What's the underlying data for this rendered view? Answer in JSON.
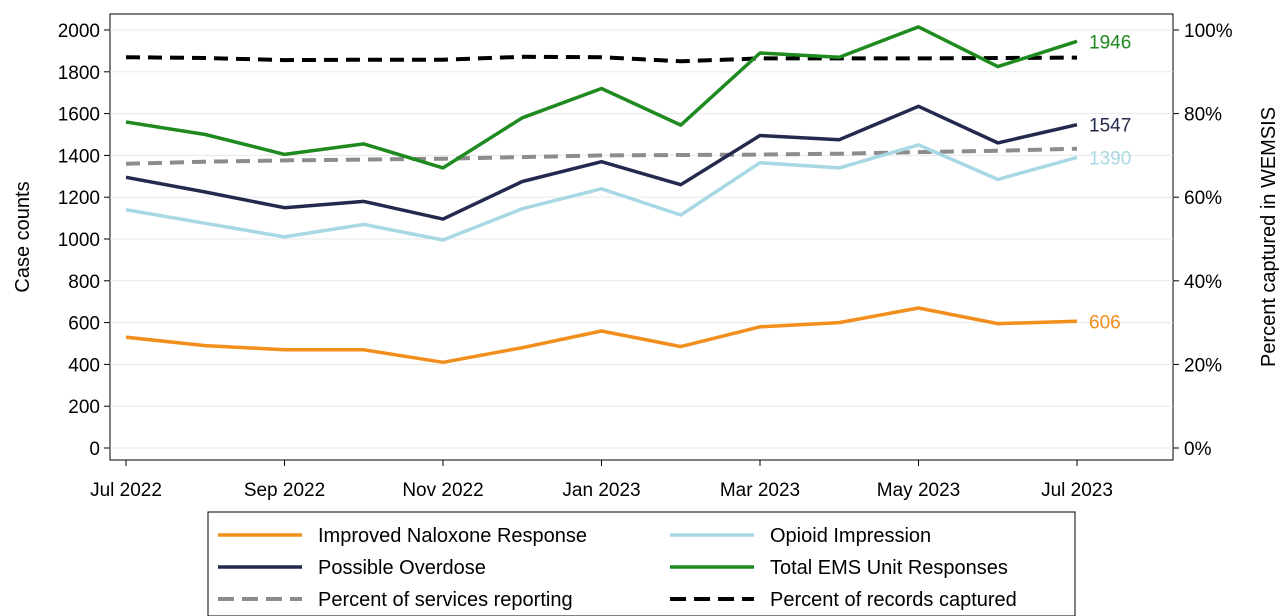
{
  "chart_data": {
    "type": "line",
    "xlabel": "",
    "ylabel": "Case counts",
    "y2label": "Percent captured in WEMSIS",
    "ylim": [
      0,
      2000
    ],
    "y2lim": [
      0,
      100
    ],
    "grid": true,
    "legend_position": "bottom",
    "x": [
      "Jul 2022",
      "Aug 2022",
      "Sep 2022",
      "Oct 2022",
      "Nov 2022",
      "Dec 2022",
      "Jan 2023",
      "Feb 2023",
      "Mar 2023",
      "Apr 2023",
      "May 2023",
      "Jun 2023",
      "Jul 2023"
    ],
    "x_tick_labels": [
      "Jul 2022",
      "Sep 2022",
      "Nov 2022",
      "Jan 2023",
      "Mar 2023",
      "May 2023",
      "Jul 2023"
    ],
    "y_ticks": [
      "0",
      "200",
      "400",
      "600",
      "800",
      "1000",
      "1200",
      "1400",
      "1600",
      "1800",
      "2000"
    ],
    "y2_ticks": [
      "0%",
      "20%",
      "40%",
      "60%",
      "80%",
      "100%"
    ],
    "series": [
      {
        "name": "Improved Naloxone Response",
        "axis": "left",
        "color": "#f28e1c",
        "dash": "solid",
        "end_label": "606",
        "values": [
          530,
          490,
          470,
          470,
          410,
          480,
          560,
          485,
          580,
          600,
          670,
          595,
          606
        ]
      },
      {
        "name": "Opioid Impression",
        "axis": "left",
        "color": "#a8d8e3",
        "dash": "solid",
        "end_label": "1390",
        "values": [
          1140,
          1075,
          1010,
          1070,
          995,
          1145,
          1240,
          1115,
          1365,
          1340,
          1450,
          1285,
          1390
        ]
      },
      {
        "name": "Possible Overdose",
        "axis": "left",
        "color": "#242a4e",
        "dash": "solid",
        "end_label": "1547",
        "values": [
          1295,
          1225,
          1150,
          1180,
          1095,
          1275,
          1370,
          1260,
          1495,
          1475,
          1635,
          1460,
          1547
        ]
      },
      {
        "name": "Total EMS Unit Responses",
        "axis": "left",
        "color": "#1f8a1f",
        "dash": "solid",
        "end_label": "1946",
        "values": [
          1560,
          1500,
          1405,
          1455,
          1340,
          1580,
          1720,
          1545,
          1890,
          1870,
          2015,
          1825,
          1946
        ]
      },
      {
        "name": "Percent of services reporting",
        "axis": "right",
        "color": "#8c8c8c",
        "dash": "dashed",
        "end_label": "",
        "values": [
          68,
          68.5,
          68.8,
          69,
          69.2,
          69.6,
          70,
          70.1,
          70.2,
          70.4,
          70.8,
          71.1,
          71.6
        ]
      },
      {
        "name": "Percent of records captured",
        "axis": "right",
        "color": "#000000",
        "dash": "dashed",
        "end_label": "",
        "values": [
          93.5,
          93.3,
          92.8,
          92.9,
          92.9,
          93.6,
          93.5,
          92.5,
          93.2,
          93.2,
          93.2,
          93.3,
          93.4
        ]
      }
    ]
  }
}
